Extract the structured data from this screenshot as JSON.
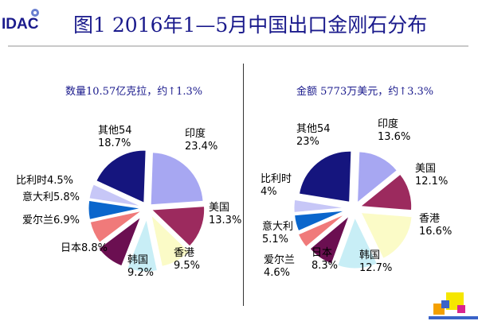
{
  "logo": {
    "text": "IDAC"
  },
  "title": "图1  2016年1—5月中国出口金刚石分布",
  "colors": {
    "title": "#1a1a8c",
    "印度": "#a7a7f2",
    "美国": "#9c2a5e",
    "香港": "#fbfbc7",
    "韩国": "#c8eef6",
    "日本": "#6b0f51",
    "爱尔兰": "#f07a7a",
    "意大利": "#0a66cc",
    "比利时": "#c7c7f7",
    "其他54": "#15157e"
  },
  "chart_data": [
    {
      "type": "pie",
      "title": "数量10.57亿克拉，约↑1.3%",
      "slices": [
        {
          "name": "印度",
          "value": 23.4,
          "label_lines": [
            "印度",
            "23.4%"
          ]
        },
        {
          "name": "美国",
          "value": 13.3,
          "label_lines": [
            "美国",
            "13.3%"
          ]
        },
        {
          "name": "香港",
          "value": 9.5,
          "label_lines": [
            "香港",
            "9.5%"
          ]
        },
        {
          "name": "韩国",
          "value": 9.2,
          "label_lines": [
            "韩国",
            "9.2%"
          ]
        },
        {
          "name": "日本",
          "value": 8.8,
          "label_lines": [
            "日本8.8%"
          ]
        },
        {
          "name": "爱尔兰",
          "value": 6.9,
          "label_lines": [
            "爱尔兰6.9%"
          ]
        },
        {
          "name": "意大利",
          "value": 5.8,
          "label_lines": [
            "意大利5.8%"
          ]
        },
        {
          "name": "比利时",
          "value": 4.5,
          "label_lines": [
            "比利时4.5%"
          ]
        },
        {
          "name": "其他54",
          "value": 18.7,
          "label_lines": [
            "其他54",
            "18.7%"
          ]
        }
      ]
    },
    {
      "type": "pie",
      "title": "金额 5773万美元，约↑3.3%",
      "slices": [
        {
          "name": "印度",
          "value": 13.6,
          "label_lines": [
            "印度",
            "13.6%"
          ]
        },
        {
          "name": "美国",
          "value": 12.1,
          "label_lines": [
            "美国",
            "12.1%"
          ]
        },
        {
          "name": "香港",
          "value": 16.6,
          "label_lines": [
            "香港",
            "16.6%"
          ]
        },
        {
          "name": "韩国",
          "value": 12.7,
          "label_lines": [
            "韩国",
            "12.7%"
          ]
        },
        {
          "name": "日本",
          "value": 8.3,
          "label_lines": [
            "日本",
            "8.3%"
          ]
        },
        {
          "name": "爱尔兰",
          "value": 4.6,
          "label_lines": [
            "爱尔兰",
            "4.6%"
          ]
        },
        {
          "name": "意大利",
          "value": 5.1,
          "label_lines": [
            "意大利",
            "5.1%"
          ]
        },
        {
          "name": "比利时",
          "value": 4,
          "label_lines": [
            "比利时",
            "4%"
          ]
        },
        {
          "name": "其他54",
          "value": 23,
          "label_lines": [
            "其他54",
            "23%"
          ]
        }
      ]
    }
  ]
}
